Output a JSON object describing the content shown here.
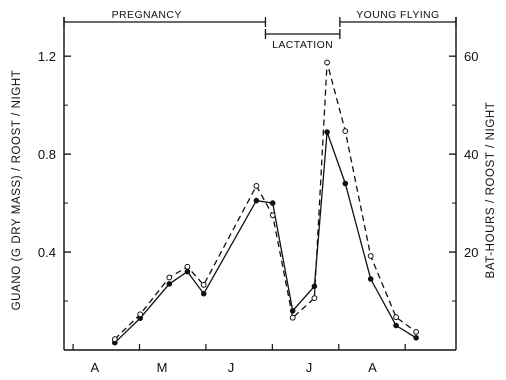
{
  "chart_data": {
    "type": "line",
    "title": "",
    "ylabel_left": "GUANO (G DRY MASS) / ROOST / NIGHT",
    "ylabel_right": "BAT-HOURS / ROOST / NIGHT",
    "xlabel": "",
    "x_month_labels": [
      "A",
      "M",
      "J",
      "J",
      "A"
    ],
    "y_left_ticks": [
      "0.4",
      "0.8",
      "1.2"
    ],
    "y_right_ticks": [
      "20",
      "40",
      "60"
    ],
    "ylim_left": [
      0,
      1.36
    ],
    "ylim_right": [
      0,
      68
    ],
    "periods": [
      {
        "label": "PREGNANCY",
        "x_start": 0.0,
        "x_end": 5.55
      },
      {
        "label": "LACTATION",
        "x_start": 5.55,
        "x_end": 7.6
      },
      {
        "label": "YOUNG FLYING",
        "x_start": 7.6,
        "x_end": 10.8
      }
    ],
    "series": [
      {
        "name": "",
        "style": "solid",
        "marker": "filled",
        "axis": "left",
        "points": [
          [
            1.4,
            0.03
          ],
          [
            2.1,
            0.13
          ],
          [
            2.9,
            0.27
          ],
          [
            3.4,
            0.32
          ],
          [
            3.85,
            0.23
          ],
          [
            5.3,
            0.61
          ],
          [
            5.75,
            0.6
          ],
          [
            6.3,
            0.16
          ],
          [
            6.9,
            0.26
          ],
          [
            7.25,
            0.89
          ],
          [
            7.75,
            0.68
          ],
          [
            8.45,
            0.29
          ],
          [
            9.15,
            0.1
          ],
          [
            9.7,
            0.05
          ]
        ]
      },
      {
        "name": "",
        "style": "dashed",
        "marker": "open",
        "axis": "right",
        "points": [
          [
            1.4,
            2.2
          ],
          [
            2.1,
            7.3
          ],
          [
            2.9,
            14.8
          ],
          [
            3.4,
            17.0
          ],
          [
            3.85,
            13.3
          ],
          [
            5.3,
            33.5
          ],
          [
            5.75,
            27.5
          ],
          [
            6.3,
            6.6
          ],
          [
            6.9,
            10.6
          ],
          [
            7.25,
            58.7
          ],
          [
            7.75,
            44.7
          ],
          [
            8.45,
            19.2
          ],
          [
            9.15,
            6.7
          ],
          [
            9.7,
            3.7
          ]
        ]
      }
    ]
  }
}
